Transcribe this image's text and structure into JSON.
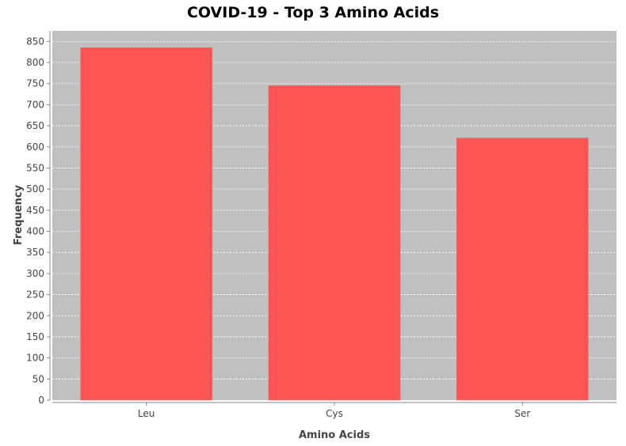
{
  "chart_data": {
    "type": "bar",
    "title": "COVID-19 - Top 3 Amino Acids",
    "xlabel": "Amino Acids",
    "ylabel": "Frequency",
    "categories": [
      "Leu",
      "Cys",
      "Ser"
    ],
    "values": [
      835,
      745,
      621
    ],
    "ylim": [
      0,
      875
    ],
    "yticks": [
      0,
      50,
      100,
      150,
      200,
      250,
      300,
      350,
      400,
      450,
      500,
      550,
      600,
      650,
      700,
      750,
      800,
      850
    ],
    "grid": true,
    "colors": {
      "bar": "#ff5555",
      "plot_background": "#c0c0c0",
      "gridline": "#ffffff"
    }
  }
}
